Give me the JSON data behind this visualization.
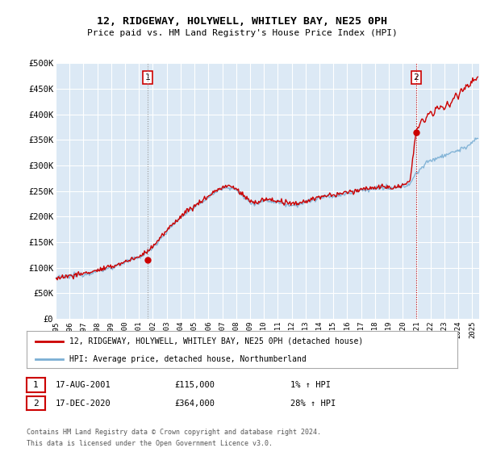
{
  "title": "12, RIDGEWAY, HOLYWELL, WHITLEY BAY, NE25 0PH",
  "subtitle": "Price paid vs. HM Land Registry's House Price Index (HPI)",
  "ylim": [
    0,
    500000
  ],
  "yticks": [
    0,
    50000,
    100000,
    150000,
    200000,
    250000,
    300000,
    350000,
    400000,
    450000,
    500000
  ],
  "ytick_labels": [
    "£0",
    "£50K",
    "£100K",
    "£150K",
    "£200K",
    "£250K",
    "£300K",
    "£350K",
    "£400K",
    "£450K",
    "£500K"
  ],
  "background_color": "#dce9f5",
  "grid_color": "#ffffff",
  "hpi_color": "#7bafd4",
  "price_color": "#cc0000",
  "marker1_date": 2001.62,
  "marker1_price": 115000,
  "marker2_date": 2020.96,
  "marker2_price": 364000,
  "legend_label1": "12, RIDGEWAY, HOLYWELL, WHITLEY BAY, NE25 0PH (detached house)",
  "legend_label2": "HPI: Average price, detached house, Northumberland",
  "footnote3": "Contains HM Land Registry data © Crown copyright and database right 2024.",
  "footnote4": "This data is licensed under the Open Government Licence v3.0.",
  "xmin": 1995.0,
  "xmax": 2025.5,
  "xticks": [
    1995,
    1996,
    1997,
    1998,
    1999,
    2000,
    2001,
    2002,
    2003,
    2004,
    2005,
    2006,
    2007,
    2008,
    2009,
    2010,
    2011,
    2012,
    2013,
    2014,
    2015,
    2016,
    2017,
    2018,
    2019,
    2020,
    2021,
    2022,
    2023,
    2024,
    2025
  ]
}
